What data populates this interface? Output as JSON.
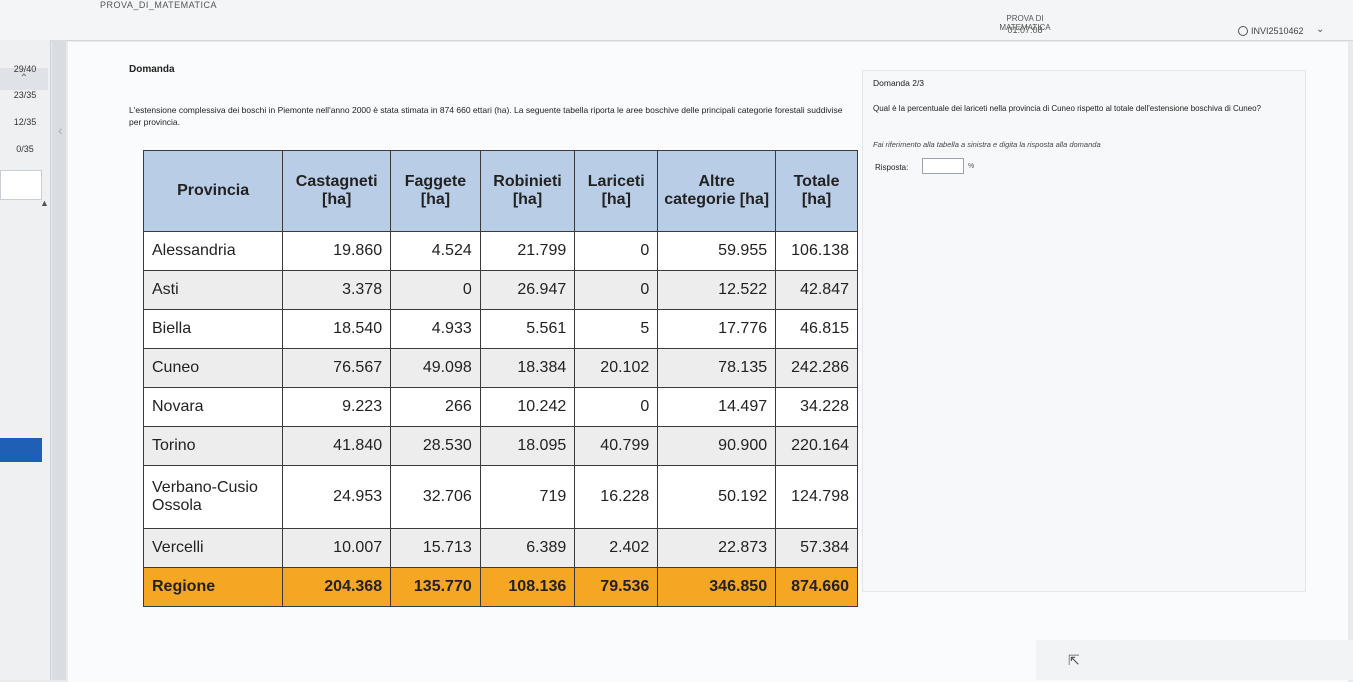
{
  "header": {
    "window_title": "PROVA_DI_MATEMATICA",
    "exam_title": "PROVA DI MATEMATICA",
    "timer": "01:07:08",
    "user_id": "INVI2510462"
  },
  "sidebar": {
    "items": [
      {
        "label": "29/40"
      },
      {
        "label": "23/35"
      },
      {
        "label": "12/35"
      },
      {
        "label": "0/35"
      }
    ]
  },
  "question": {
    "heading": "Domanda",
    "text": "L'estensione complessiva dei boschi in Piemonte nell'anno 2000 è stata stimata in 874 660 ettari (ha). La seguente tabella riporta le aree boschive delle principali categorie forestali suddivise per provincia."
  },
  "table": {
    "headers": [
      "Provincia",
      "Castagneti [ha]",
      "Faggete [ha]",
      "Robinieti [ha]",
      "Lariceti [ha]",
      "Altre categorie [ha]",
      "Totale [ha]"
    ],
    "rows": [
      [
        "Alessandria",
        "19.860",
        "4.524",
        "21.799",
        "0",
        "59.955",
        "106.138"
      ],
      [
        "Asti",
        "3.378",
        "0",
        "26.947",
        "0",
        "12.522",
        "42.847"
      ],
      [
        "Biella",
        "18.540",
        "4.933",
        "5.561",
        "5",
        "17.776",
        "46.815"
      ],
      [
        "Cuneo",
        "76.567",
        "49.098",
        "18.384",
        "20.102",
        "78.135",
        "242.286"
      ],
      [
        "Novara",
        "9.223",
        "266",
        "10.242",
        "0",
        "14.497",
        "34.228"
      ],
      [
        "Torino",
        "41.840",
        "28.530",
        "18.095",
        "40.799",
        "90.900",
        "220.164"
      ],
      [
        "Verbano-Cusio Ossola",
        "24.953",
        "32.706",
        "719",
        "16.228",
        "50.192",
        "124.798"
      ],
      [
        "Vercelli",
        "10.007",
        "15.713",
        "6.389",
        "2.402",
        "22.873",
        "57.384"
      ]
    ],
    "total_row": [
      "Regione",
      "204.368",
      "135.770",
      "108.136",
      "79.536",
      "346.850",
      "874.660"
    ]
  },
  "answer": {
    "counter": "Domanda 2/3",
    "question": "Qual è la percentuale dei lariceti nella provincia di Cuneo rispetto al totale dell'estensione boschiva di Cuneo?",
    "hint": "Fai riferimento alla tabella a sinistra e digita la risposta alla domanda",
    "label": "Risposta:",
    "value": "",
    "unit": "%"
  }
}
